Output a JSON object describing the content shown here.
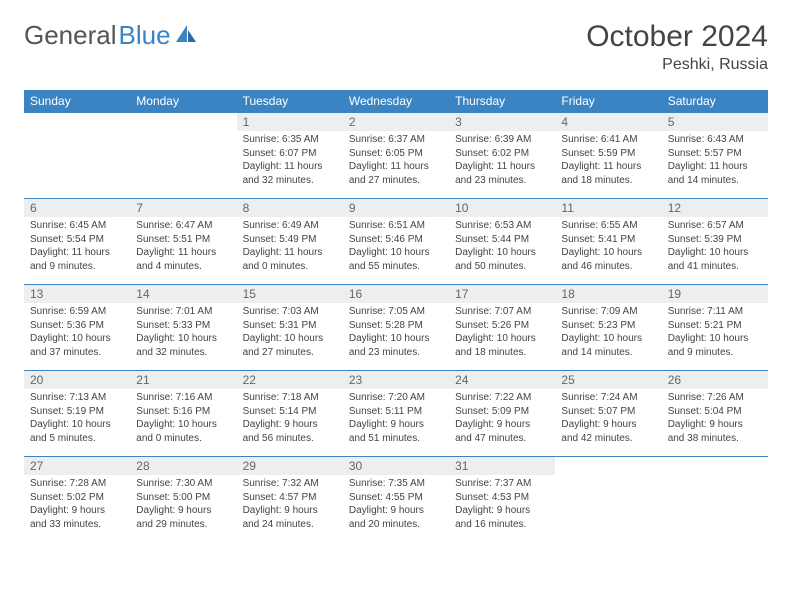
{
  "brand": {
    "part1": "General",
    "part2": "Blue"
  },
  "title": "October 2024",
  "location": "Peshki, Russia",
  "colors": {
    "header_bg": "#3b84c4",
    "header_text": "#ffffff",
    "daynum_bg": "#eceeef",
    "border": "#3b84c4",
    "text": "#444444",
    "page_bg": "#ffffff"
  },
  "weekdays": [
    "Sunday",
    "Monday",
    "Tuesday",
    "Wednesday",
    "Thursday",
    "Friday",
    "Saturday"
  ],
  "first_weekday_index": 2,
  "days": [
    {
      "n": 1,
      "sunrise": "6:35 AM",
      "sunset": "6:07 PM",
      "daylight": "11 hours and 32 minutes."
    },
    {
      "n": 2,
      "sunrise": "6:37 AM",
      "sunset": "6:05 PM",
      "daylight": "11 hours and 27 minutes."
    },
    {
      "n": 3,
      "sunrise": "6:39 AM",
      "sunset": "6:02 PM",
      "daylight": "11 hours and 23 minutes."
    },
    {
      "n": 4,
      "sunrise": "6:41 AM",
      "sunset": "5:59 PM",
      "daylight": "11 hours and 18 minutes."
    },
    {
      "n": 5,
      "sunrise": "6:43 AM",
      "sunset": "5:57 PM",
      "daylight": "11 hours and 14 minutes."
    },
    {
      "n": 6,
      "sunrise": "6:45 AM",
      "sunset": "5:54 PM",
      "daylight": "11 hours and 9 minutes."
    },
    {
      "n": 7,
      "sunrise": "6:47 AM",
      "sunset": "5:51 PM",
      "daylight": "11 hours and 4 minutes."
    },
    {
      "n": 8,
      "sunrise": "6:49 AM",
      "sunset": "5:49 PM",
      "daylight": "11 hours and 0 minutes."
    },
    {
      "n": 9,
      "sunrise": "6:51 AM",
      "sunset": "5:46 PM",
      "daylight": "10 hours and 55 minutes."
    },
    {
      "n": 10,
      "sunrise": "6:53 AM",
      "sunset": "5:44 PM",
      "daylight": "10 hours and 50 minutes."
    },
    {
      "n": 11,
      "sunrise": "6:55 AM",
      "sunset": "5:41 PM",
      "daylight": "10 hours and 46 minutes."
    },
    {
      "n": 12,
      "sunrise": "6:57 AM",
      "sunset": "5:39 PM",
      "daylight": "10 hours and 41 minutes."
    },
    {
      "n": 13,
      "sunrise": "6:59 AM",
      "sunset": "5:36 PM",
      "daylight": "10 hours and 37 minutes."
    },
    {
      "n": 14,
      "sunrise": "7:01 AM",
      "sunset": "5:33 PM",
      "daylight": "10 hours and 32 minutes."
    },
    {
      "n": 15,
      "sunrise": "7:03 AM",
      "sunset": "5:31 PM",
      "daylight": "10 hours and 27 minutes."
    },
    {
      "n": 16,
      "sunrise": "7:05 AM",
      "sunset": "5:28 PM",
      "daylight": "10 hours and 23 minutes."
    },
    {
      "n": 17,
      "sunrise": "7:07 AM",
      "sunset": "5:26 PM",
      "daylight": "10 hours and 18 minutes."
    },
    {
      "n": 18,
      "sunrise": "7:09 AM",
      "sunset": "5:23 PM",
      "daylight": "10 hours and 14 minutes."
    },
    {
      "n": 19,
      "sunrise": "7:11 AM",
      "sunset": "5:21 PM",
      "daylight": "10 hours and 9 minutes."
    },
    {
      "n": 20,
      "sunrise": "7:13 AM",
      "sunset": "5:19 PM",
      "daylight": "10 hours and 5 minutes."
    },
    {
      "n": 21,
      "sunrise": "7:16 AM",
      "sunset": "5:16 PM",
      "daylight": "10 hours and 0 minutes."
    },
    {
      "n": 22,
      "sunrise": "7:18 AM",
      "sunset": "5:14 PM",
      "daylight": "9 hours and 56 minutes."
    },
    {
      "n": 23,
      "sunrise": "7:20 AM",
      "sunset": "5:11 PM",
      "daylight": "9 hours and 51 minutes."
    },
    {
      "n": 24,
      "sunrise": "7:22 AM",
      "sunset": "5:09 PM",
      "daylight": "9 hours and 47 minutes."
    },
    {
      "n": 25,
      "sunrise": "7:24 AM",
      "sunset": "5:07 PM",
      "daylight": "9 hours and 42 minutes."
    },
    {
      "n": 26,
      "sunrise": "7:26 AM",
      "sunset": "5:04 PM",
      "daylight": "9 hours and 38 minutes."
    },
    {
      "n": 27,
      "sunrise": "7:28 AM",
      "sunset": "5:02 PM",
      "daylight": "9 hours and 33 minutes."
    },
    {
      "n": 28,
      "sunrise": "7:30 AM",
      "sunset": "5:00 PM",
      "daylight": "9 hours and 29 minutes."
    },
    {
      "n": 29,
      "sunrise": "7:32 AM",
      "sunset": "4:57 PM",
      "daylight": "9 hours and 24 minutes."
    },
    {
      "n": 30,
      "sunrise": "7:35 AM",
      "sunset": "4:55 PM",
      "daylight": "9 hours and 20 minutes."
    },
    {
      "n": 31,
      "sunrise": "7:37 AM",
      "sunset": "4:53 PM",
      "daylight": "9 hours and 16 minutes."
    }
  ]
}
